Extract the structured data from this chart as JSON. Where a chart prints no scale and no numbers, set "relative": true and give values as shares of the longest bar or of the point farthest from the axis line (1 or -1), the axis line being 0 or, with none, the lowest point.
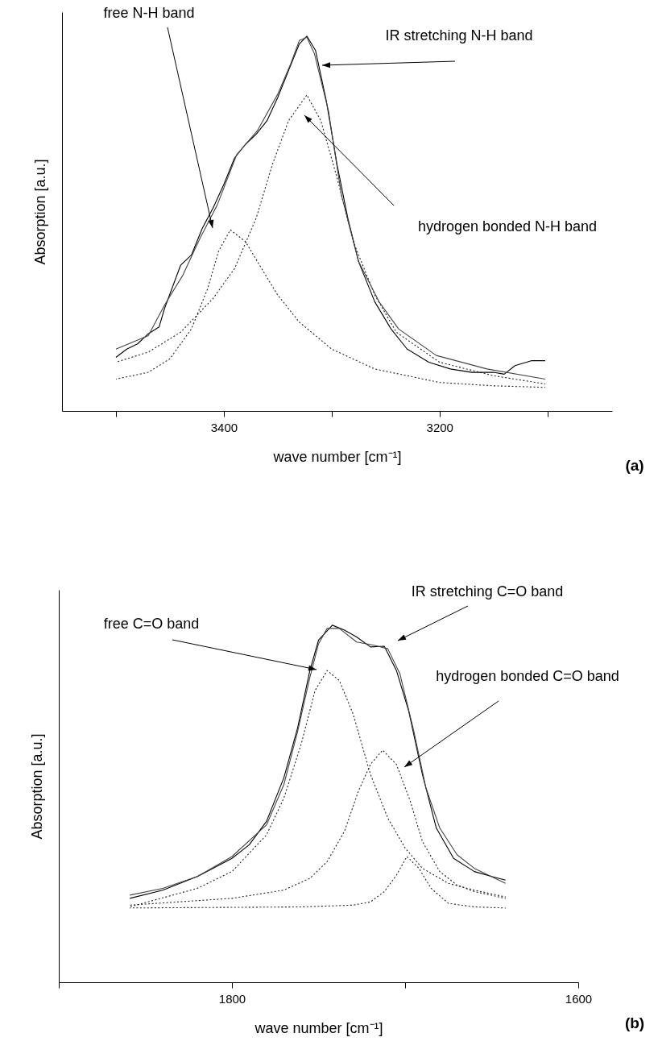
{
  "chart_data": [
    {
      "type": "line",
      "xlabel": "wave number [cm⁻¹]",
      "ylabel": "Absorption [a.u.]",
      "relative": true,
      "xlim": [
        3550,
        3040
      ],
      "xticks": [
        {
          "value": 3500,
          "label": null
        },
        3400,
        {
          "value": 3300,
          "label": null
        },
        3200,
        {
          "value": 3100,
          "label": null
        }
      ],
      "series": [
        {
          "color": "#222222",
          "line_style": "dotted",
          "x": [
            3500,
            3470,
            3450,
            3430,
            3415,
            3405,
            3394,
            3380,
            3365,
            3350,
            3330,
            3300,
            3260,
            3200,
            3150,
            3102
          ],
          "values": [
            0.085,
            0.103,
            0.139,
            0.219,
            0.326,
            0.425,
            0.483,
            0.452,
            0.38,
            0.309,
            0.237,
            0.165,
            0.112,
            0.076,
            0.067,
            0.063
          ]
        },
        {
          "color": "#222222",
          "line_style": "dotted",
          "x": [
            3500,
            3470,
            3440,
            3410,
            3390,
            3370,
            3355,
            3340,
            3323,
            3310,
            3295,
            3280,
            3260,
            3240,
            3200,
            3150,
            3102
          ],
          "values": [
            0.13,
            0.157,
            0.21,
            0.3,
            0.38,
            0.514,
            0.657,
            0.774,
            0.843,
            0.774,
            0.622,
            0.452,
            0.309,
            0.21,
            0.13,
            0.094,
            0.072
          ]
        },
        {
          "color": "#000000",
          "line_style": "solid",
          "x": [
            3500,
            3490,
            3480,
            3470,
            3460,
            3455,
            3440,
            3430,
            3420,
            3410,
            3400,
            3390,
            3380,
            3370,
            3360,
            3350,
            3340,
            3330,
            3323,
            3315,
            3305,
            3295,
            3285,
            3275,
            3260,
            3245,
            3230,
            3210,
            3190,
            3170,
            3150,
            3140,
            3130,
            3115,
            3102
          ],
          "values": [
            0.143,
            0.165,
            0.179,
            0.206,
            0.224,
            0.273,
            0.389,
            0.416,
            0.487,
            0.541,
            0.604,
            0.675,
            0.711,
            0.738,
            0.774,
            0.836,
            0.908,
            0.979,
            1.0,
            0.962,
            0.828,
            0.657,
            0.514,
            0.398,
            0.291,
            0.219,
            0.165,
            0.13,
            0.112,
            0.103,
            0.103,
            0.098,
            0.121,
            0.134,
            0.134
          ]
        },
        {
          "color": "#444444",
          "line_style": "solid",
          "x": [
            3500,
            3470,
            3455,
            3438,
            3422,
            3406,
            3388,
            3369,
            3350,
            3338,
            3330,
            3323,
            3316,
            3303,
            3291,
            3275,
            3256,
            3238,
            3203,
            3156,
            3102
          ],
          "values": [
            0.165,
            0.201,
            0.282,
            0.362,
            0.461,
            0.55,
            0.684,
            0.747,
            0.845,
            0.926,
            0.988,
            0.997,
            0.953,
            0.801,
            0.577,
            0.398,
            0.291,
            0.219,
            0.148,
            0.112,
            0.085
          ]
        }
      ],
      "annotations": [
        "free N-H band",
        "IR stretching N-H band",
        "hydrogen bonded N-H band",
        "(a)"
      ]
    },
    {
      "type": "line",
      "xlabel": "wave number [cm⁻¹]",
      "ylabel": "Absorption [a.u.]",
      "relative": true,
      "xlim": [
        1900,
        1600
      ],
      "xticks": [
        {
          "value": 1900,
          "label": null
        },
        1800,
        {
          "value": 1700,
          "label": null
        },
        1600
      ],
      "series": [
        {
          "color": "#222222",
          "line_style": "dotted",
          "x": [
            1859,
            1820,
            1800,
            1780,
            1770,
            1760,
            1752,
            1745,
            1738,
            1730,
            1720,
            1710,
            1700,
            1690,
            1675,
            1660,
            1642
          ],
          "values": [
            0.211,
            0.263,
            0.31,
            0.413,
            0.516,
            0.667,
            0.817,
            0.873,
            0.845,
            0.751,
            0.582,
            0.46,
            0.376,
            0.319,
            0.277,
            0.258,
            0.239
          ]
        },
        {
          "color": "#222222",
          "line_style": "dotted",
          "x": [
            1859,
            1800,
            1770,
            1755,
            1745,
            1735,
            1727,
            1720,
            1713,
            1705,
            1697,
            1690,
            1680,
            1670,
            1660,
            1642
          ],
          "values": [
            0.216,
            0.235,
            0.258,
            0.291,
            0.338,
            0.423,
            0.535,
            0.61,
            0.65,
            0.61,
            0.507,
            0.394,
            0.31,
            0.272,
            0.254,
            0.235
          ]
        },
        {
          "color": "#222222",
          "line_style": "dotted",
          "x": [
            1859,
            1760,
            1730,
            1720,
            1712,
            1705,
            1699,
            1692,
            1685,
            1675,
            1660,
            1642
          ],
          "values": [
            0.208,
            0.211,
            0.216,
            0.225,
            0.254,
            0.3,
            0.352,
            0.319,
            0.263,
            0.221,
            0.211,
            0.208
          ]
        },
        {
          "color": "#000000",
          "line_style": "solid",
          "x": [
            1859,
            1840,
            1820,
            1800,
            1790,
            1780,
            1770,
            1762,
            1755,
            1750,
            1742,
            1735,
            1728,
            1720,
            1712,
            1705,
            1698,
            1690,
            1682,
            1672,
            1660,
            1650,
            1642
          ],
          "values": [
            0.235,
            0.258,
            0.296,
            0.347,
            0.385,
            0.451,
            0.573,
            0.714,
            0.873,
            0.958,
            1.0,
            0.986,
            0.967,
            0.939,
            0.941,
            0.873,
            0.761,
            0.582,
            0.432,
            0.347,
            0.31,
            0.296,
            0.286
          ]
        },
        {
          "color": "#444444",
          "line_style": "solid",
          "x": [
            1859,
            1840,
            1820,
            1800,
            1780,
            1770,
            1762,
            1755,
            1750,
            1745,
            1738,
            1728,
            1718,
            1710,
            1703,
            1695,
            1688,
            1680,
            1670,
            1660,
            1642
          ],
          "values": [
            0.244,
            0.263,
            0.296,
            0.352,
            0.441,
            0.554,
            0.704,
            0.854,
            0.948,
            0.991,
            0.991,
            0.953,
            0.944,
            0.934,
            0.864,
            0.704,
            0.545,
            0.432,
            0.357,
            0.319,
            0.277
          ]
        }
      ],
      "annotations": [
        "free C=O band",
        "IR stretching C=O band",
        "hydrogen bonded C=O band",
        "(b)"
      ]
    }
  ]
}
